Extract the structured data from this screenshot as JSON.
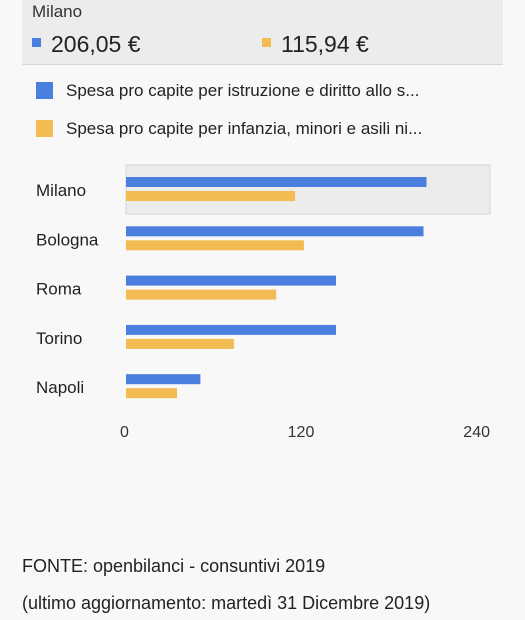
{
  "tooltip": {
    "city": "Milano",
    "value_a": "206,05 €",
    "value_b": "115,94 €"
  },
  "colors": {
    "series_a": "#4a7fe0",
    "series_b": "#f2bc52",
    "highlight": "#ececec"
  },
  "chart_data": {
    "type": "bar",
    "orientation": "horizontal",
    "categories": [
      "Milano",
      "Bologna",
      "Roma",
      "Torino",
      "Napoli"
    ],
    "series": [
      {
        "name": "Spesa pro capite per istruzione e diritto allo s...",
        "values": [
          206.05,
          204,
          144,
          144,
          51
        ]
      },
      {
        "name": "Spesa pro capite per infanzia, minori e asili ni...",
        "values": [
          115.94,
          122,
          103,
          74,
          35
        ]
      }
    ],
    "xticks": [
      "0",
      "120",
      "240"
    ],
    "xlim": [
      0,
      240
    ],
    "highlighted_category": "Milano"
  },
  "footer": {
    "source_label": "FONTE:",
    "source_text": " openbilanci - consuntivi 2019",
    "updated": "(ultimo aggiornamento: martedì 31 Dicembre 2019)"
  }
}
